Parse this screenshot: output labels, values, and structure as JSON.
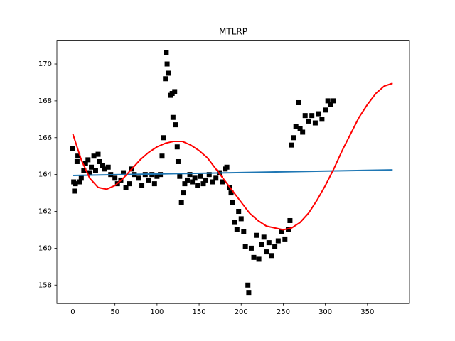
{
  "chart_data": {
    "type": "scatter",
    "title": "MTLRP",
    "xlim": [
      -19,
      400
    ],
    "ylim": [
      157,
      171.25
    ],
    "xticks": [
      0,
      50,
      100,
      150,
      200,
      250,
      300,
      350
    ],
    "yticks": [
      158,
      160,
      162,
      164,
      166,
      168,
      170
    ],
    "series": [
      {
        "kind": "points",
        "color": "#000000",
        "x": [
          0,
          1,
          2,
          3,
          5,
          6,
          8,
          10,
          13,
          15,
          18,
          20,
          22,
          25,
          27,
          30,
          32,
          35,
          38,
          42,
          45,
          50,
          53,
          57,
          60,
          63,
          67,
          70,
          73,
          78,
          82,
          86,
          90,
          94,
          97,
          100,
          104,
          106,
          108,
          110,
          111,
          112,
          114,
          116,
          118,
          119,
          121,
          122,
          124,
          125,
          127,
          129,
          131,
          133,
          136,
          139,
          142,
          145,
          148,
          152,
          155,
          158,
          162,
          166,
          170,
          174,
          178,
          181,
          183,
          186,
          188,
          190,
          192,
          195,
          197,
          200,
          203,
          205,
          208,
          209,
          212,
          215,
          218,
          221,
          224,
          227,
          230,
          233,
          236,
          240,
          244,
          248,
          252,
          256,
          258,
          260,
          262,
          265,
          268,
          270,
          273,
          276,
          280,
          284,
          288,
          292,
          296,
          300,
          303,
          306,
          310
        ],
        "values": [
          165.4,
          163.6,
          163.1,
          163.5,
          164.7,
          165.0,
          163.6,
          163.8,
          164.2,
          164.6,
          164.8,
          164.1,
          164.4,
          165.0,
          164.2,
          165.1,
          164.7,
          164.5,
          164.3,
          164.4,
          164.0,
          163.8,
          163.5,
          163.7,
          164.1,
          163.3,
          163.5,
          164.3,
          164.0,
          163.8,
          163.4,
          164.0,
          163.7,
          164.0,
          163.5,
          163.9,
          164.0,
          165.0,
          166.0,
          169.2,
          170.6,
          170.0,
          169.5,
          168.3,
          168.4,
          167.1,
          168.5,
          166.7,
          165.5,
          164.7,
          163.9,
          162.5,
          163.0,
          163.5,
          163.7,
          164.0,
          163.6,
          163.8,
          163.4,
          163.9,
          163.5,
          163.7,
          164.0,
          163.6,
          163.8,
          164.1,
          163.6,
          164.3,
          164.4,
          163.3,
          163.0,
          162.5,
          161.4,
          161.0,
          162.0,
          161.6,
          160.9,
          160.1,
          158.0,
          157.6,
          160.0,
          159.5,
          160.7,
          159.4,
          160.2,
          160.6,
          159.8,
          160.3,
          159.6,
          160.1,
          160.4,
          160.9,
          160.5,
          161.0,
          161.5,
          165.6,
          166.0,
          166.6,
          167.9,
          166.5,
          166.3,
          167.2,
          166.9,
          167.2,
          166.8,
          167.3,
          167.0,
          167.5,
          168.0,
          167.8,
          168.0
        ]
      },
      {
        "kind": "line",
        "color": "#1f77b4",
        "x": [
          0,
          380
        ],
        "values": [
          163.95,
          164.25
        ]
      },
      {
        "kind": "line",
        "color": "#ff0000",
        "x": [
          0,
          10,
          20,
          30,
          40,
          50,
          60,
          70,
          80,
          90,
          100,
          110,
          120,
          130,
          140,
          150,
          160,
          170,
          180,
          190,
          200,
          210,
          220,
          230,
          240,
          250,
          260,
          270,
          280,
          290,
          300,
          310,
          320,
          330,
          340,
          350,
          360,
          370,
          380
        ],
        "values": [
          166.2,
          164.8,
          163.8,
          163.3,
          163.2,
          163.4,
          163.8,
          164.3,
          164.8,
          165.2,
          165.5,
          165.7,
          165.8,
          165.8,
          165.6,
          165.3,
          164.9,
          164.3,
          163.7,
          163.1,
          162.5,
          161.9,
          161.5,
          161.2,
          161.1,
          161.0,
          161.1,
          161.4,
          161.9,
          162.6,
          163.4,
          164.3,
          165.3,
          166.2,
          167.1,
          167.8,
          168.4,
          168.8,
          168.95
        ]
      }
    ]
  }
}
